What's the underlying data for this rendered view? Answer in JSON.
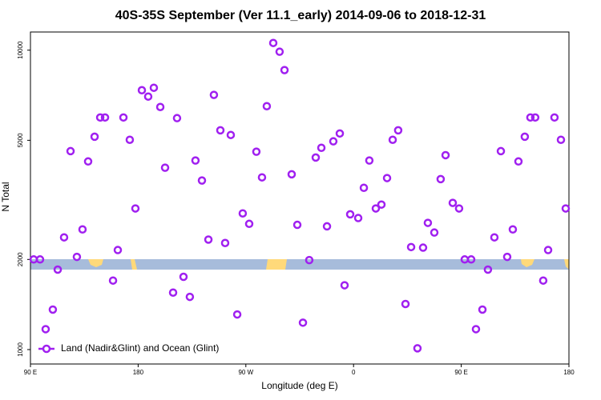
{
  "chart_data": {
    "type": "scatter",
    "title": "40S-35S September (Ver 11.1_early)   2014-09-06 to 2018-12-31",
    "xlabel": "Longitude (deg E)",
    "ylabel": "N Total",
    "xlim": [
      90,
      540
    ],
    "xticks": [
      {
        "value": 90,
        "label": "90 E"
      },
      180,
      {
        "value": 270,
        "label": "90 W"
      },
      0,
      {
        "value": 450,
        "label": "90 E"
      },
      {
        "value": 540,
        "label": "180"
      }
    ],
    "ylim": [
      895,
      11500
    ],
    "ylog": true,
    "yticks": [
      1000,
      2000,
      5000,
      10000
    ],
    "legend": "lower left",
    "series": [
      {
        "name": "Land (Nadir&Glint) and Ocean (Glint)",
        "color": "#a020f0",
        "x": [
          92.7,
          98,
          102.7,
          108.7,
          112.8,
          118.1,
          123.5,
          128.8,
          133.5,
          138.2,
          143.6,
          148.3,
          152.3,
          159,
          163,
          167.7,
          173,
          177.7,
          183.1,
          188.4,
          193.1,
          198.5,
          202.5,
          209.2,
          212.5,
          217.9,
          223.2,
          227.9,
          233.3,
          238.7,
          243.3,
          248.7,
          252.7,
          257.4,
          262.8,
          267.4,
          272.8,
          278.8,
          283.5,
          287.5,
          292.9,
          298.2,
          302.3,
          308.3,
          313,
          317.7,
          323,
          328.4,
          333.1,
          337.8,
          343.1,
          348.5,
          352.5,
          357.2,
          363.9,
          368.6,
          373.2,
          378.6,
          383.3,
          388,
          392.7,
          397.3,
          403.4,
          408.1,
          413.4,
          418.1,
          422.1,
          427.5,
          432.8,
          436.9,
          442.9,
          448.2,
          452.9,
          458.3,
          462.3,
          467.7,
          472.3,
          477.7,
          483.1,
          488.4,
          493.1,
          497.8,
          503.1,
          507.8,
          511.8,
          518.5,
          522.6,
          527.9,
          533.3,
          537.3
        ],
        "values": [
          2000,
          2000,
          1170,
          1360,
          1850,
          2370,
          4600,
          2040,
          2520,
          4250,
          5140,
          5960,
          5960,
          1700,
          2150,
          5960,
          5020,
          2960,
          7350,
          7000,
          7490,
          6460,
          4050,
          1550,
          5930,
          1750,
          1500,
          4280,
          3670,
          2330,
          7090,
          5400,
          2270,
          5210,
          1310,
          2850,
          2630,
          4580,
          3760,
          6500,
          10570,
          9880,
          8580,
          3850,
          2610,
          1230,
          1990,
          4380,
          4720,
          2580,
          4960,
          5270,
          1640,
          2830,
          2750,
          3470,
          4280,
          2960,
          3050,
          3740,
          5020,
          5400,
          1420,
          2200,
          1010,
          2190,
          2650,
          2460,
          3710,
          4460,
          3090,
          2960,
          2000,
          2000,
          1170,
          1360,
          1850,
          2370,
          4600,
          2040,
          2520,
          4250,
          5140,
          5960,
          5960,
          1700,
          2150,
          5960,
          5020,
          2960
        ]
      }
    ]
  }
}
